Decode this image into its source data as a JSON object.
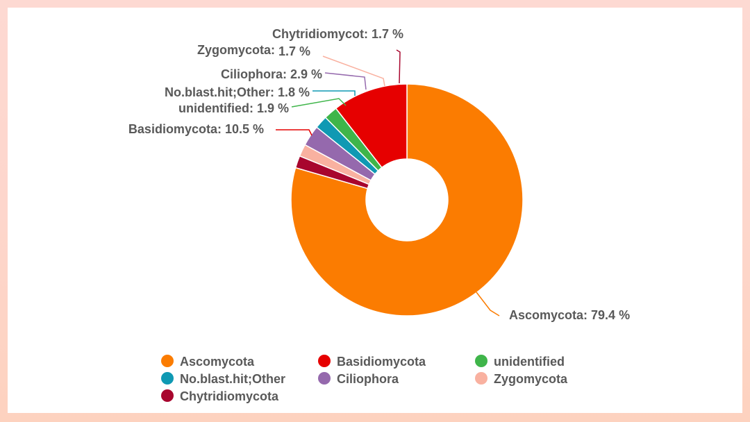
{
  "chart_data": {
    "type": "pie",
    "donut": true,
    "title": "",
    "slices": [
      {
        "name": "Ascomycota",
        "value": 79.4,
        "label": "Ascomycota: 79.4 %",
        "color": "#fb7c01"
      },
      {
        "name": "Basidiomycota",
        "value": 10.5,
        "label": "Basidiomycota: 10.5 %",
        "color": "#e60000"
      },
      {
        "name": "unidentified",
        "value": 1.9,
        "label": "unidentified: 1.9 %",
        "color": "#3fb54a"
      },
      {
        "name": "No.blast.hit;Other",
        "value": 1.8,
        "label": "No.blast.hit;Other: 1.8 %",
        "color": "#0f99b3"
      },
      {
        "name": "Ciliophora",
        "value": 2.9,
        "label": "Ciliophora: 2.9 %",
        "color": "#9569ad"
      },
      {
        "name": "Zygomycota",
        "value": 1.7,
        "label_name": "Zygomycota:",
        "label_value": "1.7 %",
        "color": "#f9b1a0"
      },
      {
        "name": "Chytridiomycota",
        "value": 1.7,
        "label": "Chytridiomycot: 1.7 %",
        "color": "#a8062e"
      }
    ],
    "legend": [
      "Ascomycota",
      "Basidiomycota",
      "unidentified",
      "No.blast.hit;Other",
      "Ciliophora",
      "Zygomycota",
      "Chytridiomycota"
    ],
    "legend_position": "bottom"
  }
}
